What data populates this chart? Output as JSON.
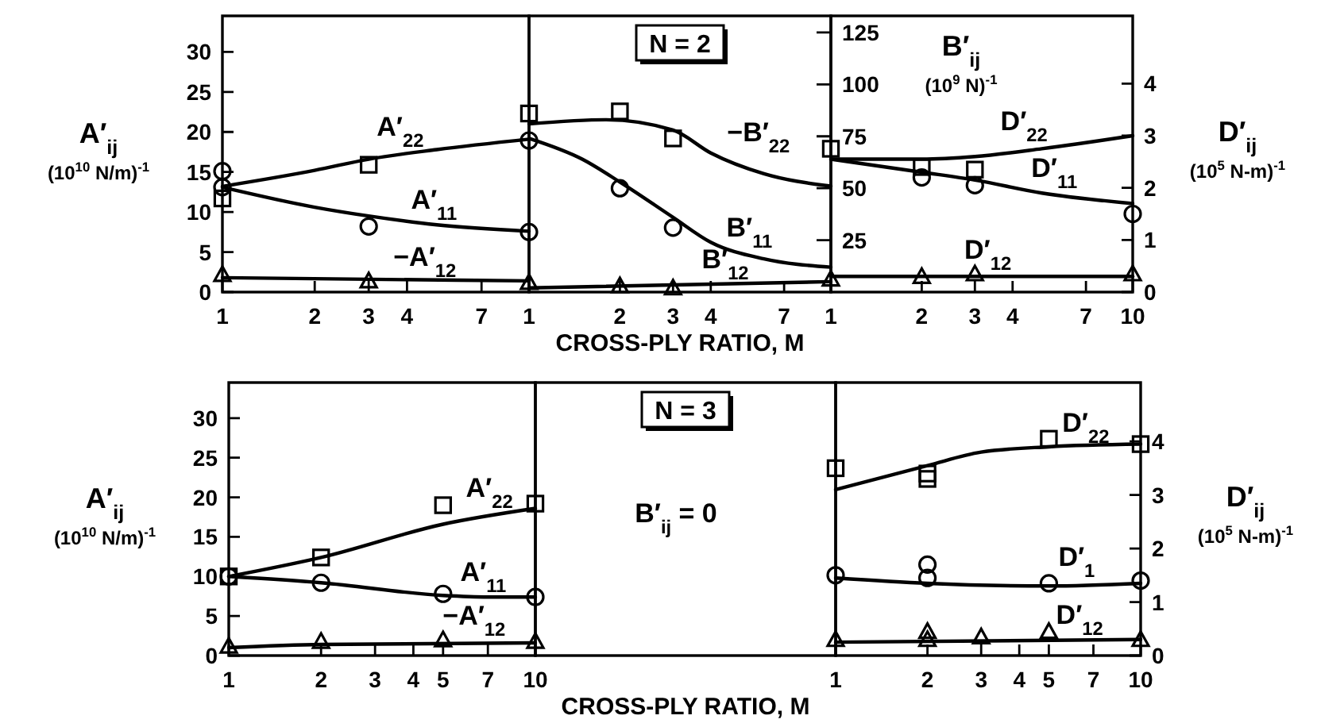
{
  "chart_data": [
    {
      "type": "line",
      "log": "x",
      "xlim": [
        1,
        10
      ],
      "xticks": [
        1,
        2,
        3,
        4,
        7
      ],
      "ylim": [
        0,
        34.5
      ],
      "yticks": [
        0,
        5,
        10,
        15,
        20,
        25,
        30
      ],
      "ylabel": "A′$_{ij}$\n(10$^{10}$ N/m)$^{-1}$",
      "series": [
        {
          "name": "A′$_{22}$",
          "color": "#000000",
          "x": [
            1,
            2,
            3,
            5,
            10
          ],
          "values": [
            13.2,
            15.2,
            16.6,
            17.8,
            19.1
          ]
        },
        {
          "name": "A′$_{11}$",
          "color": "#000000",
          "x": [
            1,
            2,
            3,
            5,
            10
          ],
          "values": [
            13.1,
            10.6,
            9.5,
            8.4,
            7.6
          ]
        },
        {
          "name": "−A′$_{12}$",
          "color": "#000000",
          "x": [
            1,
            3,
            10
          ],
          "values": [
            1.8,
            1.6,
            1.4
          ]
        },
        {
          "type": "scatter",
          "marker": "square",
          "color": "#000000",
          "x": [
            1,
            3
          ],
          "values": [
            11.7,
            15.9
          ]
        },
        {
          "type": "scatter",
          "marker": "circle",
          "color": "#000000",
          "x": [
            1,
            1,
            3,
            10
          ],
          "values": [
            15.1,
            13.1,
            8.2,
            7.5
          ]
        },
        {
          "type": "scatter",
          "marker": "triangle",
          "color": "#000000",
          "x": [
            1,
            3,
            10
          ],
          "values": [
            2.2,
            1.4,
            1.2
          ]
        }
      ]
    },
    {
      "type": "line",
      "log": "x",
      "title": "N = 2",
      "xlabel": "CROSS-PLY RATIO, M",
      "xlim": [
        1,
        10
      ],
      "xticks": [
        1,
        2,
        3,
        4,
        7
      ],
      "ylim": [
        0,
        133
      ],
      "yticks": [
        25,
        50,
        75,
        100,
        125
      ],
      "ylabel": "B′$_{ij}$\n(10$^{9}$ N)$^{-1}$",
      "series": [
        {
          "name": "−B′$_{22}$",
          "color": "#000000",
          "x": [
            1,
            1.8,
            3,
            4,
            6,
            10
          ],
          "values": [
            81,
            83,
            78,
            67,
            57,
            51
          ]
        },
        {
          "name": "B′$_{11}$",
          "color": "#000000",
          "x": [
            1,
            1.5,
            2,
            3,
            4,
            6,
            10
          ],
          "values": [
            74,
            64,
            53,
            36,
            24,
            16,
            12
          ]
        },
        {
          "name": "B′$_{12}$",
          "color": "#000000",
          "x": [
            1,
            10
          ],
          "values": [
            2,
            5
          ]
        },
        {
          "type": "scatter",
          "marker": "square",
          "color": "#000000",
          "x": [
            1,
            2,
            3
          ],
          "values": [
            86,
            87,
            74
          ]
        },
        {
          "type": "scatter",
          "marker": "circle",
          "color": "#000000",
          "x": [
            1,
            2,
            3
          ],
          "values": [
            73,
            50,
            31
          ]
        },
        {
          "type": "scatter",
          "marker": "triangle",
          "color": "#000000",
          "x": [
            2,
            3
          ],
          "values": [
            3,
            2
          ]
        }
      ]
    },
    {
      "type": "line",
      "log": "x",
      "xlim": [
        1,
        10
      ],
      "xticks": [
        1,
        2,
        3,
        4,
        7,
        10
      ],
      "ylim": [
        0,
        5.3
      ],
      "yticks": [
        0,
        1,
        2,
        3,
        4
      ],
      "ylabel": "D′$_{ij}$\n(10$^{5}$ N-m)$^{-1}$",
      "series": [
        {
          "name": "D′$_{22}$",
          "color": "#000000",
          "x": [
            1,
            2,
            3,
            5,
            10
          ],
          "values": [
            2.55,
            2.55,
            2.6,
            2.75,
            3.0
          ]
        },
        {
          "name": "D′$_{11}$",
          "color": "#000000",
          "x": [
            1,
            2,
            3,
            5,
            10
          ],
          "values": [
            2.55,
            2.3,
            2.15,
            1.9,
            1.7
          ]
        },
        {
          "name": "D′$_{12}$",
          "color": "#000000",
          "x": [
            1,
            10
          ],
          "values": [
            0.3,
            0.3
          ]
        },
        {
          "type": "scatter",
          "marker": "square",
          "color": "#000000",
          "x": [
            1,
            2,
            3
          ],
          "values": [
            2.75,
            2.4,
            2.35
          ]
        },
        {
          "type": "scatter",
          "marker": "circle",
          "color": "#000000",
          "x": [
            2,
            3,
            10
          ],
          "values": [
            2.2,
            2.05,
            1.5
          ]
        },
        {
          "type": "scatter",
          "marker": "triangle",
          "color": "#000000",
          "x": [
            1,
            2,
            3,
            10
          ],
          "values": [
            0.25,
            0.3,
            0.35,
            0.35
          ]
        }
      ]
    },
    {
      "type": "line",
      "log": "x",
      "xlim": [
        1,
        10
      ],
      "xticks": [
        1,
        2,
        3,
        4,
        5,
        7,
        10
      ],
      "ylim": [
        0,
        34.5
      ],
      "yticks": [
        0,
        5,
        10,
        15,
        20,
        25,
        30
      ],
      "ylabel": "A′$_{ij}$\n(10$^{10}$ N/m)$^{-1}$",
      "series": [
        {
          "name": "A′$_{22}$",
          "color": "#000000",
          "x": [
            1,
            2,
            5,
            10
          ],
          "values": [
            10,
            12.4,
            16.6,
            18.6
          ]
        },
        {
          "name": "A′$_{11}$",
          "color": "#000000",
          "x": [
            1,
            2,
            5,
            7,
            10
          ],
          "values": [
            10,
            9.2,
            7.6,
            7.4,
            7.4
          ]
        },
        {
          "name": "−A′$_{12}$",
          "color": "#000000",
          "x": [
            1,
            2,
            10
          ],
          "values": [
            1,
            1.4,
            1.6
          ]
        },
        {
          "type": "scatter",
          "marker": "square",
          "color": "#000000",
          "x": [
            1,
            2,
            5,
            10
          ],
          "values": [
            10,
            12.4,
            19,
            19.2
          ]
        },
        {
          "type": "scatter",
          "marker": "circle",
          "color": "#000000",
          "x": [
            1,
            2,
            5,
            10
          ],
          "values": [
            10,
            9.2,
            7.8,
            7.4
          ]
        },
        {
          "type": "scatter",
          "marker": "triangle",
          "color": "#000000",
          "x": [
            1,
            2,
            5,
            10
          ],
          "values": [
            1.2,
            1.8,
            2,
            1.8
          ]
        }
      ]
    },
    {
      "type": "other",
      "title": "N = 3",
      "xlabel": "CROSS-PLY RATIO, M",
      "annotations": [
        "B′$_{ij}$ = 0"
      ]
    },
    {
      "type": "line",
      "log": "x",
      "xlim": [
        1,
        10
      ],
      "xticks": [
        1,
        2,
        3,
        4,
        5,
        7,
        10
      ],
      "ylim": [
        0,
        5.1
      ],
      "yticks": [
        0,
        1,
        2,
        3,
        4
      ],
      "ylabel": "D′$_{ij}$\n(10$^{5}$ N-m)$^{-1}$",
      "series": [
        {
          "name": "D′$_{22}$",
          "color": "#000000",
          "x": [
            1,
            2,
            3,
            5,
            10
          ],
          "values": [
            3.1,
            3.55,
            3.8,
            3.9,
            3.95
          ]
        },
        {
          "name": "D′$_{1}$",
          "color": "#000000",
          "x": [
            1,
            2,
            5,
            10
          ],
          "values": [
            1.45,
            1.35,
            1.3,
            1.35
          ]
        },
        {
          "name": "D′$_{12}$",
          "color": "#000000",
          "x": [
            1,
            10
          ],
          "values": [
            0.25,
            0.3
          ]
        },
        {
          "type": "scatter",
          "marker": "square",
          "color": "#000000",
          "x": [
            1,
            2,
            2,
            5,
            10
          ],
          "values": [
            3.5,
            3.4,
            3.3,
            4.05,
            3.95
          ]
        },
        {
          "type": "scatter",
          "marker": "circle",
          "color": "#000000",
          "x": [
            1,
            2,
            2,
            5,
            10
          ],
          "values": [
            1.5,
            1.7,
            1.45,
            1.35,
            1.4
          ]
        },
        {
          "type": "scatter",
          "marker": "triangle",
          "color": "#000000",
          "x": [
            1,
            2,
            2,
            3,
            5,
            10
          ],
          "values": [
            0.3,
            0.45,
            0.3,
            0.35,
            0.45,
            0.3
          ]
        }
      ]
    }
  ]
}
